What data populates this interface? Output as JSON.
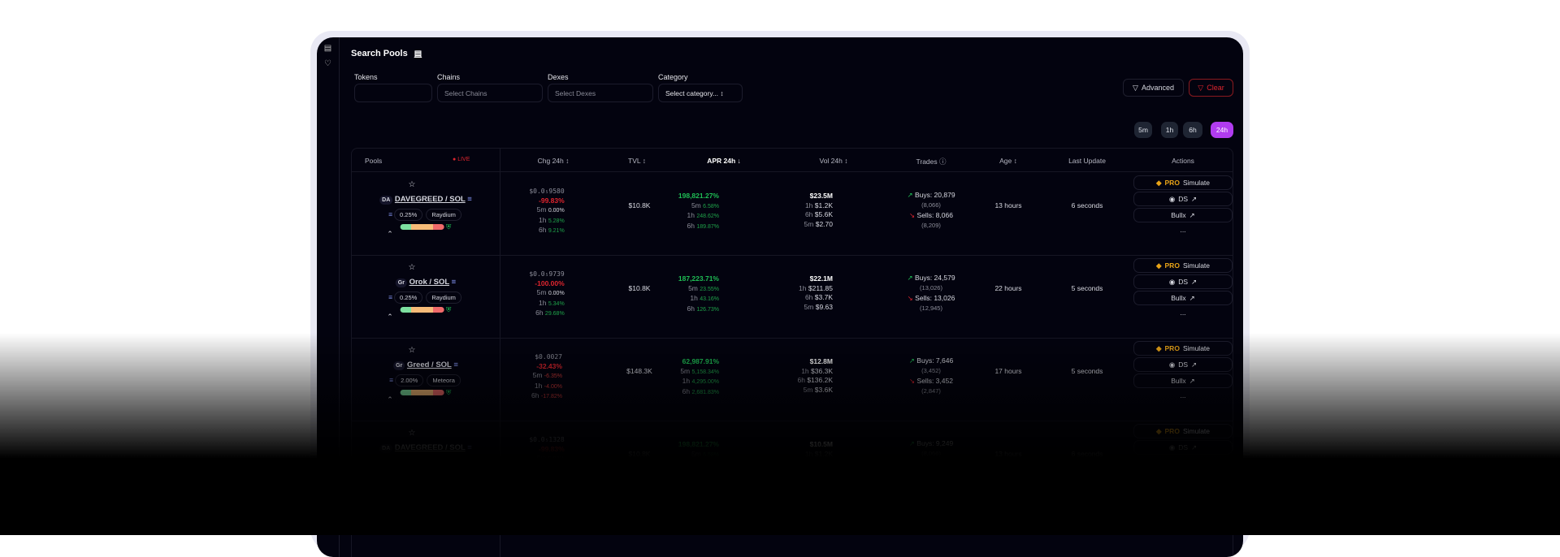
{
  "sidebar": {
    "icons": [
      "chart-icon",
      "heart-icon"
    ]
  },
  "header": {
    "title": "Search Pools"
  },
  "filters": {
    "tokens_label": "Tokens",
    "tokens_value": "",
    "chains_label": "Chains",
    "chains_placeholder": "Select Chains",
    "dexes_label": "Dexes",
    "dexes_placeholder": "Select Dexes",
    "category_label": "Category",
    "category_value": "Select category...",
    "advanced": "Advanced",
    "clear": "Clear"
  },
  "timeframes": [
    "5m",
    "1h",
    "6h",
    "24h"
  ],
  "active_timeframe": "24h",
  "colors": {
    "accent": "#b13cf0",
    "negative": "#e0252e",
    "positive": "#1fbf55",
    "pro": "#e8a317"
  },
  "table": {
    "headers": {
      "pools": "Pools",
      "live": "LIVE",
      "chg": "Chg 24h",
      "tvl": "TVL",
      "apr": "APR 24h",
      "vol": "Vol 24h",
      "trades": "Trades",
      "age": "Age",
      "last_update": "Last Update",
      "actions": "Actions"
    },
    "rows": [
      {
        "icon": "DA",
        "name": "DAVEGREED / SOL",
        "fee": "0.25%",
        "dex": "Raydium",
        "price": "$0.0₅9580",
        "chg": "-99.83%",
        "chg5m": "0.00%",
        "chg1h": "5.28%",
        "chg6h": "9.21%",
        "tvl": "$10.8K",
        "apr": "198,821.27%",
        "apr5m": "6.58%",
        "apr1h": "248.62%",
        "apr6h": "189.87%",
        "vol": "$23.5M",
        "vol1h": "$1.2K",
        "vol6h": "$5.6K",
        "vol5m": "$2.70",
        "buys": "Buys: 20,879",
        "buysSub": "(8,066)",
        "sells": "Sells: 8,066",
        "sellsSub": "(8,209)",
        "age": "13 hours",
        "updated": "6 seconds"
      },
      {
        "icon": "Gr",
        "name": "Orok / SOL",
        "fee": "0.25%",
        "dex": "Raydium",
        "price": "$0.0₅9739",
        "chg": "-100.00%",
        "chg5m": "0.00%",
        "chg1h": "5.34%",
        "chg6h": "29.68%",
        "tvl": "$10.8K",
        "apr": "187,223.71%",
        "apr5m": "23.55%",
        "apr1h": "43.16%",
        "apr6h": "126.73%",
        "vol": "$22.1M",
        "vol1h": "$211.85",
        "vol6h": "$3.7K",
        "vol5m": "$9.63",
        "buys": "Buys: 24,579",
        "buysSub": "(13,026)",
        "sells": "Sells: 13,026",
        "sellsSub": "(12,945)",
        "age": "22 hours",
        "updated": "5 seconds"
      },
      {
        "icon": "Gr",
        "name": "Greed / SOL",
        "fee": "2.00%",
        "dex": "Meteora",
        "price": "$0.0027",
        "chg": "-32.43%",
        "chg5m": "-6.35%",
        "chg1h": "-4.00%",
        "chg6h": "-17.82%",
        "tvl": "$148.3K",
        "apr": "62,987.91%",
        "apr5m": "5,158.34%",
        "apr1h": "4,295.00%",
        "apr6h": "2,681.83%",
        "vol": "$12.8M",
        "vol1h": "$36.3K",
        "vol6h": "$136.2K",
        "vol5m": "$3.6K",
        "buys": "Buys: 7,646",
        "buysSub": "(3,452)",
        "sells": "Sells: 3,452",
        "sellsSub": "(2,847)",
        "age": "17 hours",
        "updated": "5 seconds"
      }
    ],
    "partial_row": {
      "price": "$0.0₅1328",
      "vol": "$10.5M",
      "buys": "Buys: 9,249"
    },
    "actions": {
      "pro": "PRO",
      "simulate": "Simulate",
      "ds": "DS",
      "bullx": "Bullx",
      "more": "..."
    },
    "labels": {
      "m5": "5m",
      "h1": "1h",
      "h6": "6h"
    }
  }
}
